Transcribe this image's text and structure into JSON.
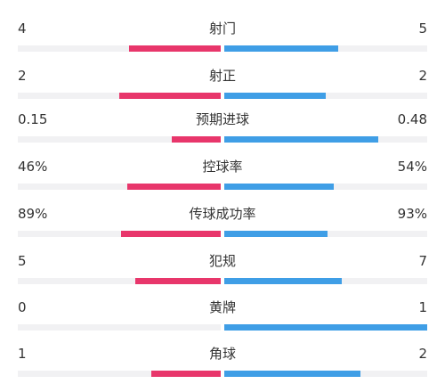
{
  "colors": {
    "home": "#e8366b",
    "away": "#3f9ee6",
    "track": "#f1f1f3"
  },
  "stats": [
    {
      "label": "射门",
      "home": "4",
      "away": "5",
      "home_frac": 0.45,
      "away_frac": 0.56
    },
    {
      "label": "射正",
      "home": "2",
      "away": "2",
      "home_frac": 0.5,
      "away_frac": 0.5
    },
    {
      "label": "预期进球",
      "home": "0.15",
      "away": "0.48",
      "home_frac": 0.24,
      "away_frac": 0.76
    },
    {
      "label": "控球率",
      "home": "46%",
      "away": "54%",
      "home_frac": 0.46,
      "away_frac": 0.54
    },
    {
      "label": "传球成功率",
      "home": "89%",
      "away": "93%",
      "home_frac": 0.49,
      "away_frac": 0.51
    },
    {
      "label": "犯规",
      "home": "5",
      "away": "7",
      "home_frac": 0.42,
      "away_frac": 0.58
    },
    {
      "label": "黄牌",
      "home": "0",
      "away": "1",
      "home_frac": 0.0,
      "away_frac": 1.0
    },
    {
      "label": "角球",
      "home": "1",
      "away": "2",
      "home_frac": 0.34,
      "away_frac": 0.67
    }
  ]
}
